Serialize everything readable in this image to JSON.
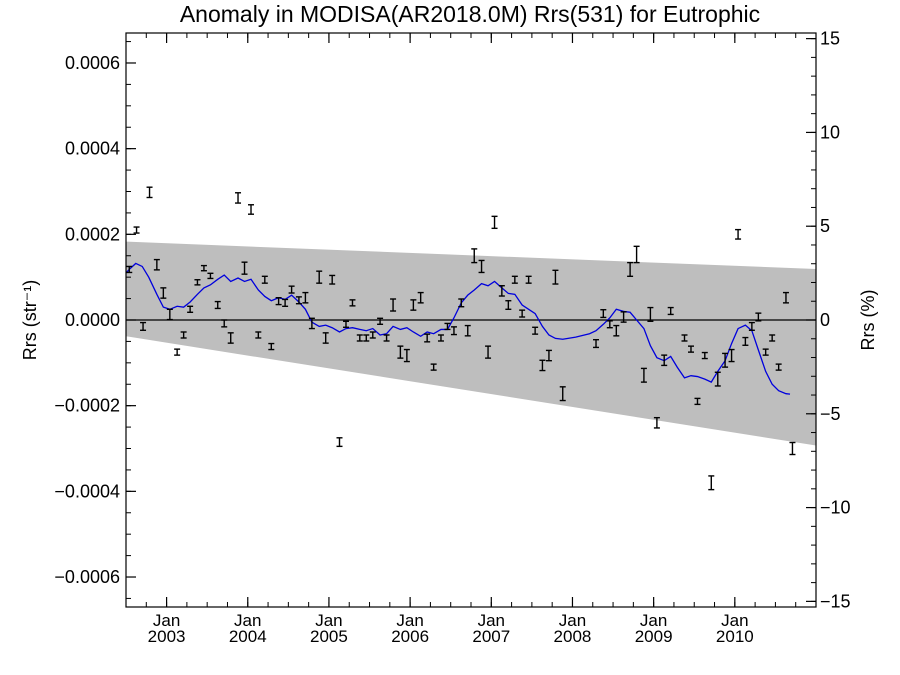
{
  "chart_data": {
    "type": "scatter",
    "title": "Anomaly in MODISA(AR2018.0M) Rrs(531) for Eutrophic",
    "ylabel_left": "Rrs (str⁻¹)",
    "ylabel_right": "Rrs (%)",
    "xlim": [
      2002.5,
      2011.0
    ],
    "ylim_left": [
      -0.00067,
      0.00067
    ],
    "ylim_right": [
      -15.3,
      15.3
    ],
    "left_ticks": [
      {
        "value": 0.0006,
        "label": "0.0006"
      },
      {
        "value": 0.0004,
        "label": "0.0004"
      },
      {
        "value": 0.0002,
        "label": "0.0002"
      },
      {
        "value": 0.0,
        "label": "0.0000"
      },
      {
        "value": -0.0002,
        "label": "−0.0002"
      },
      {
        "value": -0.0004,
        "label": "−0.0004"
      },
      {
        "value": -0.0006,
        "label": "−0.0006"
      }
    ],
    "right_ticks": [
      {
        "value": 15,
        "label": "15"
      },
      {
        "value": 10,
        "label": "10"
      },
      {
        "value": 5,
        "label": "5"
      },
      {
        "value": 0,
        "label": "0"
      },
      {
        "value": -5,
        "label": "−5"
      },
      {
        "value": -10,
        "label": "−10"
      },
      {
        "value": -15,
        "label": "−15"
      }
    ],
    "x_ticks": [
      {
        "value": 2003.0,
        "month": "Jan",
        "year": "2003"
      },
      {
        "value": 2004.0,
        "month": "Jan",
        "year": "2004"
      },
      {
        "value": 2005.0,
        "month": "Jan",
        "year": "2005"
      },
      {
        "value": 2006.0,
        "month": "Jan",
        "year": "2006"
      },
      {
        "value": 2007.0,
        "month": "Jan",
        "year": "2007"
      },
      {
        "value": 2008.0,
        "month": "Jan",
        "year": "2008"
      },
      {
        "value": 2009.0,
        "month": "Jan",
        "year": "2009"
      },
      {
        "value": 2010.0,
        "month": "Jan",
        "year": "2010"
      }
    ],
    "zero_line": 0.0,
    "confidence_band": {
      "color": "#bebebe",
      "upper": [
        [
          2002.5,
          0.000183
        ],
        [
          2011.0,
          0.000119
        ]
      ],
      "lower": [
        [
          2002.5,
          -3.8e-05
        ],
        [
          2011.0,
          -0.000293
        ]
      ]
    },
    "points": [
      [
        2002.54,
        0.000118,
        7e-06
      ],
      [
        2002.63,
        0.00021,
        7e-06
      ],
      [
        2002.71,
        -1.5e-05,
        9e-06
      ],
      [
        2002.79,
        0.000298,
        1.2e-05
      ],
      [
        2002.88,
        0.000129,
        1.2e-05
      ],
      [
        2002.96,
        6.3e-05,
        1.2e-05
      ],
      [
        2003.04,
        1.3e-05,
        1.2e-05
      ],
      [
        2003.13,
        -7.5e-05,
        7e-06
      ],
      [
        2003.21,
        -3.5e-05,
        7e-06
      ],
      [
        2003.29,
        2.5e-05,
        7e-06
      ],
      [
        2003.38,
        8.8e-05,
        6e-06
      ],
      [
        2003.46,
        0.000121,
        6e-06
      ],
      [
        2003.54,
        0.000103,
        6e-06
      ],
      [
        2003.63,
        3.5e-05,
        8e-06
      ],
      [
        2003.71,
        -8e-06,
        8e-06
      ],
      [
        2003.79,
        -4.2e-05,
        1.2e-05
      ],
      [
        2003.88,
        0.000285,
        1.2e-05
      ],
      [
        2003.96,
        0.000121,
        1.4e-05
      ],
      [
        2004.04,
        0.000258,
        1.1e-05
      ],
      [
        2004.13,
        -3.5e-05,
        7e-06
      ],
      [
        2004.21,
        9.4e-05,
        8e-06
      ],
      [
        2004.29,
        -6.2e-05,
        7e-06
      ],
      [
        2004.38,
        4.4e-05,
        8e-06
      ],
      [
        2004.46,
        4e-05,
        8e-06
      ],
      [
        2004.54,
        7.1e-05,
        8e-06
      ],
      [
        2004.63,
        4.6e-05,
        8e-06
      ],
      [
        2004.71,
        5.2e-05,
        1.2e-05
      ],
      [
        2004.79,
        -8e-06,
        1.2e-05
      ],
      [
        2004.88,
        0.0001,
        1.4e-05
      ],
      [
        2004.96,
        -4.2e-05,
        1.2e-05
      ],
      [
        2005.04,
        9.4e-05,
        1e-05
      ],
      [
        2005.13,
        -0.000285,
        1e-05
      ],
      [
        2005.21,
        -1e-05,
        7e-06
      ],
      [
        2005.29,
        4e-05,
        7e-06
      ],
      [
        2005.38,
        -4.2e-05,
        7e-06
      ],
      [
        2005.46,
        -4.2e-05,
        7e-06
      ],
      [
        2005.54,
        -3.5e-05,
        7e-06
      ],
      [
        2005.63,
        -3e-06,
        7e-06
      ],
      [
        2005.71,
        -4.2e-05,
        7e-06
      ],
      [
        2005.79,
        3.5e-05,
        1.4e-05
      ],
      [
        2005.88,
        -7.5e-05,
        1.4e-05
      ],
      [
        2005.96,
        -8.3e-05,
        1.4e-05
      ],
      [
        2006.04,
        3.5e-05,
        1.2e-05
      ],
      [
        2006.13,
        5.2e-05,
        1.2e-05
      ],
      [
        2006.21,
        -4.2e-05,
        9e-06
      ],
      [
        2006.29,
        -0.00011,
        7e-06
      ],
      [
        2006.38,
        -4.2e-05,
        7e-06
      ],
      [
        2006.46,
        -1.5e-05,
        7e-06
      ],
      [
        2006.54,
        -2.5e-05,
        9e-06
      ],
      [
        2006.63,
        4e-05,
        9e-06
      ],
      [
        2006.71,
        -2.5e-05,
        1.2e-05
      ],
      [
        2006.79,
        0.00015,
        1.6e-05
      ],
      [
        2006.88,
        0.000125,
        1.4e-05
      ],
      [
        2006.96,
        -7.5e-05,
        1.4e-05
      ],
      [
        2007.04,
        0.000228,
        1.4e-05
      ],
      [
        2007.13,
        6.8e-05,
        1.2e-05
      ],
      [
        2007.21,
        3.5e-05,
        1e-05
      ],
      [
        2007.29,
        9.4e-05,
        8e-06
      ],
      [
        2007.38,
        1.5e-05,
        8e-06
      ],
      [
        2007.46,
        9.4e-05,
        8e-06
      ],
      [
        2007.54,
        -2.5e-05,
        8e-06
      ],
      [
        2007.63,
        -0.000106,
        1.2e-05
      ],
      [
        2007.71,
        -8.3e-05,
        1.2e-05
      ],
      [
        2007.79,
        0.0001,
        1.6e-05
      ],
      [
        2007.88,
        -0.000172,
        1.6e-05
      ],
      [
        2008.29,
        -5.5e-05,
        9e-06
      ],
      [
        2008.38,
        1.5e-05,
        9e-06
      ],
      [
        2008.46,
        -1e-05,
        8e-06
      ],
      [
        2008.54,
        -2.5e-05,
        1.2e-05
      ],
      [
        2008.63,
        7e-06,
        1.2e-05
      ],
      [
        2008.71,
        0.000118,
        1.6e-05
      ],
      [
        2008.79,
        0.000153,
        1.9e-05
      ],
      [
        2008.88,
        -0.000129,
        1.6e-05
      ],
      [
        2008.96,
        1.3e-05,
        1.6e-05
      ],
      [
        2009.04,
        -0.00024,
        1.2e-05
      ],
      [
        2009.13,
        -9.4e-05,
        1.2e-05
      ],
      [
        2009.21,
        2.1e-05,
        8e-06
      ],
      [
        2009.38,
        -4.2e-05,
        7e-06
      ],
      [
        2009.46,
        -6.8e-05,
        7e-06
      ],
      [
        2009.54,
        -0.00019,
        7e-06
      ],
      [
        2009.63,
        -8.3e-05,
        7e-06
      ],
      [
        2009.71,
        -0.00038,
        1.6e-05
      ],
      [
        2009.79,
        -0.000138,
        1.6e-05
      ],
      [
        2009.88,
        -9.4e-05,
        1.6e-05
      ],
      [
        2009.96,
        -8.3e-05,
        1.4e-05
      ],
      [
        2010.04,
        0.0002,
        1.1e-05
      ],
      [
        2010.13,
        -5e-05,
        9e-06
      ],
      [
        2010.21,
        -1.5e-05,
        9e-06
      ],
      [
        2010.29,
        7e-06,
        9e-06
      ],
      [
        2010.38,
        -7.5e-05,
        7e-06
      ],
      [
        2010.46,
        -4.2e-05,
        7e-06
      ],
      [
        2010.54,
        -0.00011,
        7e-06
      ],
      [
        2010.63,
        5.2e-05,
        1.2e-05
      ],
      [
        2010.71,
        -0.0003,
        1.4e-05
      ]
    ],
    "smoothed_line": {
      "color": "#0000dd",
      "points": [
        [
          2002.5,
          0.00011
        ],
        [
          2002.55,
          0.00012
        ],
        [
          2002.62,
          0.000132
        ],
        [
          2002.7,
          0.000125
        ],
        [
          2002.78,
          0.0001
        ],
        [
          2002.88,
          6e-05
        ],
        [
          2002.96,
          3e-05
        ],
        [
          2003.04,
          2.5e-05
        ],
        [
          2003.13,
          3.2e-05
        ],
        [
          2003.21,
          3e-05
        ],
        [
          2003.29,
          4.2e-05
        ],
        [
          2003.38,
          6e-05
        ],
        [
          2003.46,
          7.5e-05
        ],
        [
          2003.54,
          8.2e-05
        ],
        [
          2003.63,
          9.5e-05
        ],
        [
          2003.71,
          0.000105
        ],
        [
          2003.79,
          9e-05
        ],
        [
          2003.88,
          9.8e-05
        ],
        [
          2003.96,
          9e-05
        ],
        [
          2004.04,
          9.5e-05
        ],
        [
          2004.13,
          7e-05
        ],
        [
          2004.21,
          5.5e-05
        ],
        [
          2004.29,
          4.5e-05
        ],
        [
          2004.38,
          5.2e-05
        ],
        [
          2004.46,
          4.8e-05
        ],
        [
          2004.54,
          5.8e-05
        ],
        [
          2004.63,
          4.2e-05
        ],
        [
          2004.71,
          2.5e-05
        ],
        [
          2004.79,
          -5e-06
        ],
        [
          2004.88,
          -1.5e-05
        ],
        [
          2004.96,
          -1.2e-05
        ],
        [
          2005.04,
          -1.8e-05
        ],
        [
          2005.13,
          -2.8e-05
        ],
        [
          2005.21,
          -2e-05
        ],
        [
          2005.29,
          -1.8e-05
        ],
        [
          2005.38,
          -2.2e-05
        ],
        [
          2005.46,
          -2.5e-05
        ],
        [
          2005.54,
          -2e-05
        ],
        [
          2005.63,
          -3.5e-05
        ],
        [
          2005.71,
          -3.2e-05
        ],
        [
          2005.79,
          -1.5e-05
        ],
        [
          2005.88,
          -2.2e-05
        ],
        [
          2005.96,
          -1.8e-05
        ],
        [
          2006.04,
          -2.8e-05
        ],
        [
          2006.13,
          -3.8e-05
        ],
        [
          2006.21,
          -2.8e-05
        ],
        [
          2006.29,
          -3.2e-05
        ],
        [
          2006.38,
          -2.2e-05
        ],
        [
          2006.46,
          -2.2e-05
        ],
        [
          2006.54,
          5e-06
        ],
        [
          2006.63,
          4e-05
        ],
        [
          2006.71,
          5.8e-05
        ],
        [
          2006.79,
          7e-05
        ],
        [
          2006.88,
          8.5e-05
        ],
        [
          2006.96,
          8e-05
        ],
        [
          2007.04,
          9e-05
        ],
        [
          2007.13,
          7.5e-05
        ],
        [
          2007.21,
          6.2e-05
        ],
        [
          2007.29,
          6e-05
        ],
        [
          2007.38,
          3.5e-05
        ],
        [
          2007.46,
          2.5e-05
        ],
        [
          2007.54,
          1.5e-05
        ],
        [
          2007.63,
          -1.5e-05
        ],
        [
          2007.71,
          -3.5e-05
        ],
        [
          2007.79,
          -4.3e-05
        ],
        [
          2007.88,
          -4.5e-05
        ],
        [
          2008.04,
          -4e-05
        ],
        [
          2008.21,
          -3.2e-05
        ],
        [
          2008.29,
          -2.5e-05
        ],
        [
          2008.38,
          -1e-05
        ],
        [
          2008.46,
          5e-06
        ],
        [
          2008.54,
          2.5e-05
        ],
        [
          2008.63,
          2e-05
        ],
        [
          2008.71,
          1.8e-05
        ],
        [
          2008.79,
          0.0
        ],
        [
          2008.88,
          -2e-05
        ],
        [
          2008.96,
          -6e-05
        ],
        [
          2009.04,
          -8.8e-05
        ],
        [
          2009.13,
          -9.5e-05
        ],
        [
          2009.21,
          -8.5e-05
        ],
        [
          2009.29,
          -0.00011
        ],
        [
          2009.38,
          -0.000135
        ],
        [
          2009.46,
          -0.00013
        ],
        [
          2009.54,
          -0.000132
        ],
        [
          2009.63,
          -0.000138
        ],
        [
          2009.71,
          -0.000145
        ],
        [
          2009.79,
          -0.00012
        ],
        [
          2009.88,
          -9.5e-05
        ],
        [
          2009.96,
          -5.5e-05
        ],
        [
          2010.04,
          -2e-05
        ],
        [
          2010.13,
          -1.2e-05
        ],
        [
          2010.21,
          -2.5e-05
        ],
        [
          2010.29,
          -7e-05
        ],
        [
          2010.38,
          -0.00012
        ],
        [
          2010.46,
          -0.00015
        ],
        [
          2010.54,
          -0.000165
        ],
        [
          2010.63,
          -0.000172
        ],
        [
          2010.68,
          -0.000173
        ]
      ]
    },
    "grid": false,
    "legend": "none"
  }
}
